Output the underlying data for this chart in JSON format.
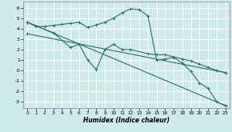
{
  "xlabel": "Humidex (Indice chaleur)",
  "bg_color": "#ceeaea",
  "grid_color": "#ffffff",
  "line_color": "#2e6e6e",
  "xlim": [
    -0.5,
    23.5
  ],
  "ylim": [
    -3.6,
    6.6
  ],
  "xticks": [
    0,
    1,
    2,
    3,
    4,
    5,
    6,
    7,
    8,
    9,
    10,
    11,
    12,
    13,
    14,
    15,
    16,
    17,
    18,
    19,
    20,
    21,
    22,
    23
  ],
  "yticks": [
    -3,
    -2,
    -1,
    0,
    1,
    2,
    3,
    4,
    5,
    6
  ],
  "line1_x": [
    0,
    1,
    2,
    3,
    4,
    5,
    6,
    7,
    8,
    9,
    10,
    11,
    12,
    13,
    14,
    15,
    16,
    17,
    18,
    19,
    20,
    21,
    22,
    23
  ],
  "line1_y": [
    4.6,
    4.2,
    4.2,
    4.3,
    4.4,
    4.5,
    4.6,
    4.1,
    4.35,
    4.6,
    5.0,
    5.5,
    5.9,
    5.8,
    5.2,
    1.0,
    1.1,
    1.25,
    0.7,
    -0.1,
    -1.2,
    -1.7,
    -3.0,
    -3.35
  ],
  "line2_x": [
    0,
    3,
    5,
    6,
    7,
    8,
    9,
    10,
    11,
    12,
    14,
    15,
    16,
    17,
    18,
    19,
    20,
    21,
    22,
    23
  ],
  "line2_y": [
    4.6,
    3.6,
    2.2,
    2.5,
    1.0,
    0.1,
    2.0,
    2.5,
    2.0,
    2.0,
    1.6,
    1.5,
    1.5,
    1.3,
    1.1,
    0.9,
    0.6,
    0.3,
    0.0,
    -0.2
  ],
  "line3_x": [
    0,
    23
  ],
  "line3_y": [
    4.6,
    -3.35
  ],
  "line4_x": [
    0,
    23
  ],
  "line4_y": [
    3.5,
    -0.2
  ]
}
